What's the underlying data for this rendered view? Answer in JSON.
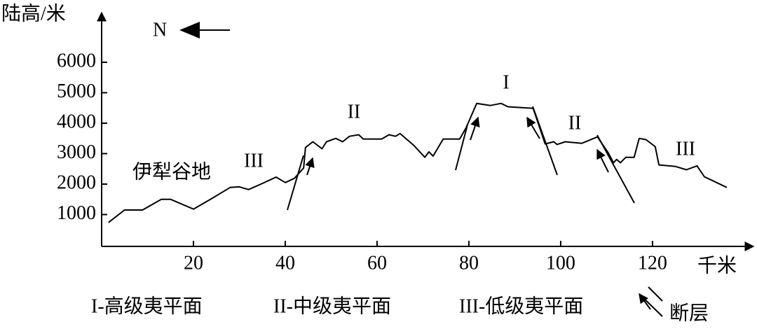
{
  "chart_data": {
    "type": "line",
    "y_label": "陆高/米",
    "x_label": "千米",
    "north": "N",
    "xlim": [
      0,
      142
    ],
    "ylim": [
      0,
      7700
    ],
    "xticks": [
      20,
      40,
      60,
      80,
      100,
      120
    ],
    "yticks": [
      1000,
      2000,
      3000,
      4000,
      5000,
      6000
    ],
    "grid": false,
    "series": [
      {
        "color": "#000000",
        "x": [
          1.5,
          5,
          8.9,
          13,
          15,
          20,
          23.7,
          28,
          30,
          32,
          34.7,
          38,
          40,
          42,
          44,
          44.4,
          46,
          48,
          49,
          51,
          52.5,
          54,
          56,
          57,
          61,
          62.6,
          64,
          65,
          68,
          70.4,
          71.3,
          72.2,
          74.4,
          78,
          79.4,
          81.7,
          84.7,
          87,
          88.5,
          94,
          96.6,
          98.5,
          99.2,
          101,
          104.6,
          108,
          110.4,
          111.5,
          112.2,
          113,
          114.2,
          116,
          117.1,
          118.6,
          120.6,
          121.4,
          125,
          127.4,
          129.7,
          131.3,
          136.2
        ],
        "values": [
          740,
          1150,
          1150,
          1500,
          1500,
          1180,
          1500,
          1890,
          1910,
          1820,
          2000,
          2230,
          2050,
          2190,
          2530,
          3200,
          3390,
          3160,
          3390,
          3500,
          3390,
          3570,
          3620,
          3480,
          3480,
          3620,
          3570,
          3660,
          3270,
          2880,
          3060,
          2920,
          3480,
          3480,
          3850,
          4650,
          4580,
          4650,
          4540,
          4490,
          3320,
          3390,
          3300,
          3390,
          3340,
          3550,
          3020,
          2700,
          2810,
          2700,
          2880,
          2880,
          3500,
          3460,
          3230,
          2630,
          2580,
          2470,
          2600,
          2240,
          1890
        ]
      }
    ],
    "annotations": [
      {
        "text": "I"
      },
      {
        "text": "II"
      },
      {
        "text": "II"
      },
      {
        "text": "III"
      },
      {
        "text": "III"
      },
      {
        "text": "伊犁谷地"
      }
    ],
    "legend": [
      "I-高级夷平面",
      "II-中级夷平面",
      "III-低级夷平面",
      "断层"
    ]
  }
}
